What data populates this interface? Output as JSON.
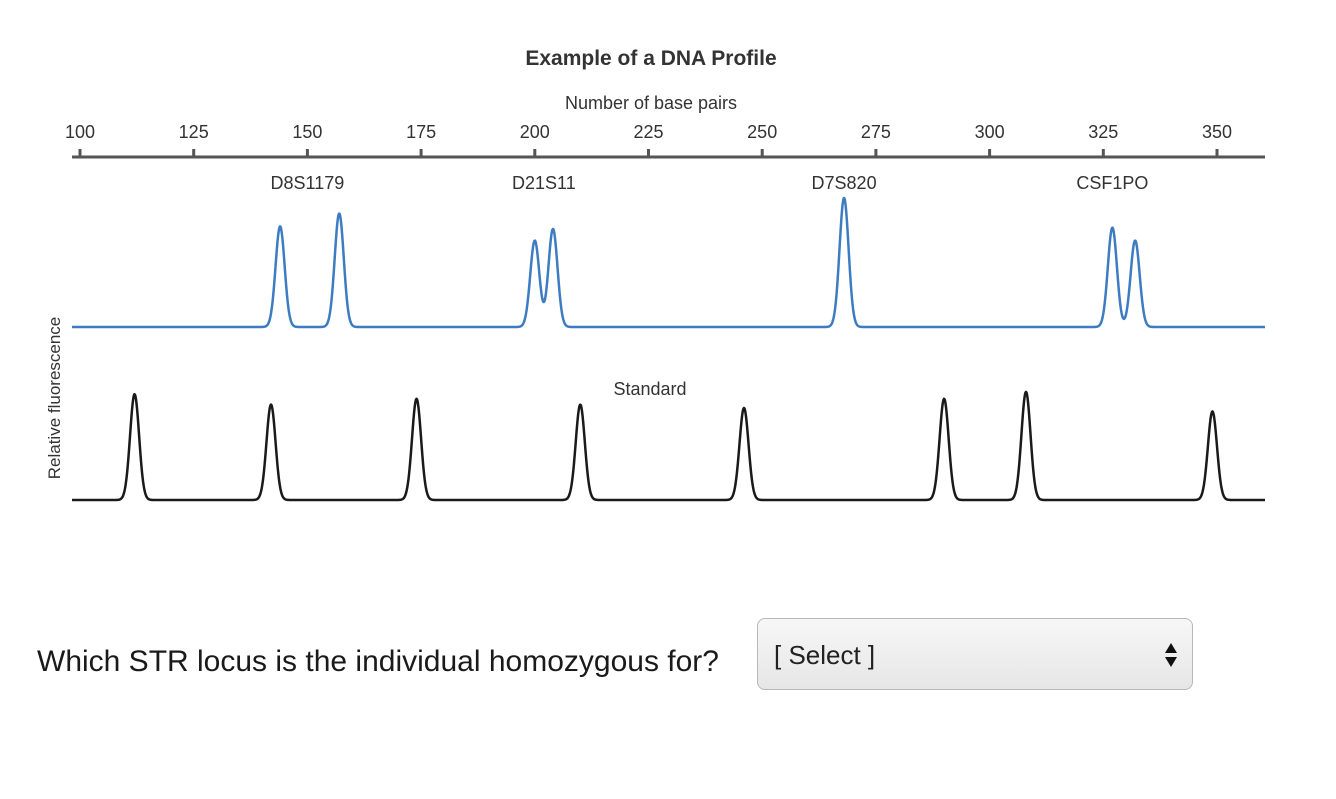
{
  "chart_data": {
    "type": "line",
    "title": "Example of a DNA Profile",
    "xlabel": "Number of base pairs",
    "ylabel": "Relative fluorescence",
    "xlim": [
      100,
      360
    ],
    "ticks": [
      100,
      125,
      150,
      175,
      200,
      225,
      250,
      275,
      300,
      325,
      350
    ],
    "loci": [
      {
        "label": "D8S1179",
        "x": 150
      },
      {
        "label": "D21S11",
        "x": 202
      },
      {
        "label": "D7S820",
        "x": 268
      },
      {
        "label": "CSF1PO",
        "x": 327
      }
    ],
    "series": [
      {
        "values": [
          {
            "x": 144,
            "h": 0.78
          },
          {
            "x": 157,
            "h": 0.88
          },
          {
            "x": 200,
            "h": 0.67
          },
          {
            "x": 204,
            "h": 0.76
          },
          {
            "x": 268,
            "h": 1.0
          },
          {
            "x": 327,
            "h": 0.77
          },
          {
            "x": 332,
            "h": 0.67
          }
        ],
        "color": "#3d7cc0"
      },
      {
        "name": "Standard",
        "values": [
          {
            "x": 112,
            "h": 0.92
          },
          {
            "x": 142,
            "h": 0.83
          },
          {
            "x": 174,
            "h": 0.88
          },
          {
            "x": 210,
            "h": 0.83
          },
          {
            "x": 246,
            "h": 0.8
          },
          {
            "x": 290,
            "h": 0.88
          },
          {
            "x": 308,
            "h": 0.94
          },
          {
            "x": 349,
            "h": 0.77
          }
        ],
        "color": "#1a1a1a"
      }
    ]
  },
  "question": {
    "text": "Which STR locus is the individual homozygous for?",
    "select_value": "[ Select ]"
  }
}
